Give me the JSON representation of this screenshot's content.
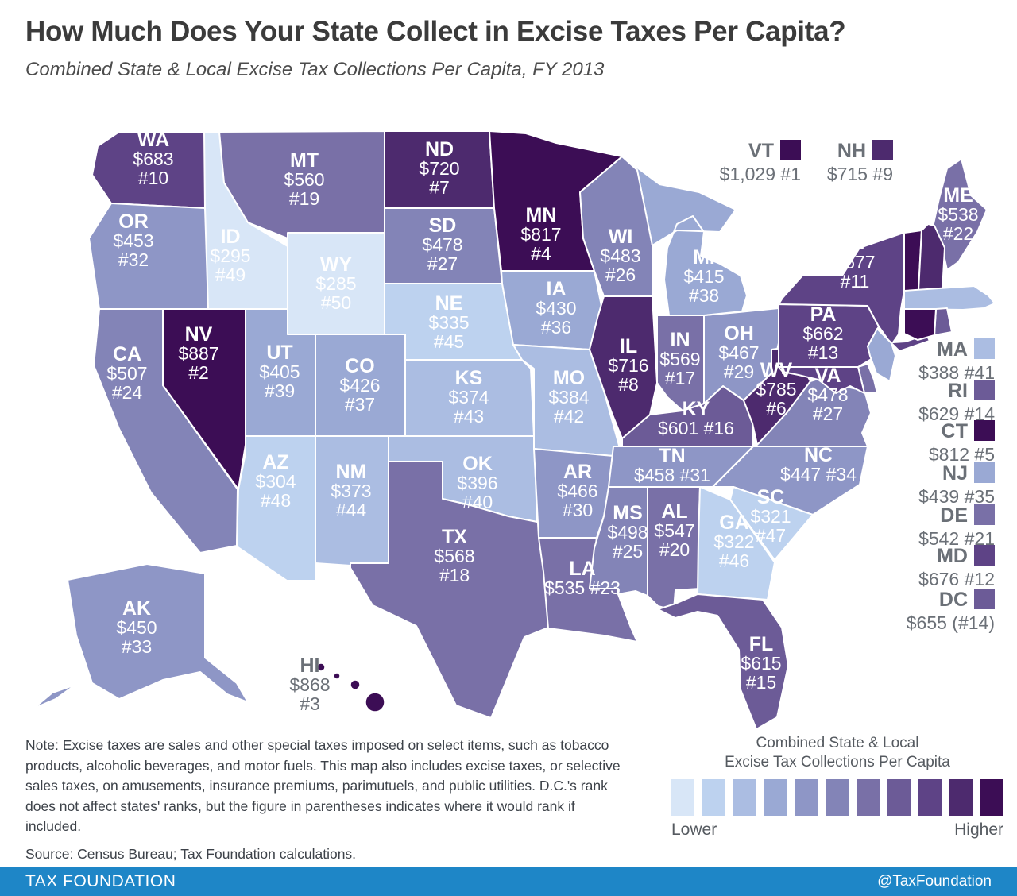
{
  "header": {
    "title": "How Much Does Your State Collect in Excise Taxes Per Capita?",
    "subtitle": "Combined State & Local Excise Tax Collections Per Capita, FY 2013"
  },
  "map": {
    "border_color": "#ffffff",
    "label_color_on_state": "#ffffff",
    "label_color_offset": "#6b7077",
    "ramp": [
      "#d8e6f7",
      "#bdd2ef",
      "#abbde2",
      "#9aa9d4",
      "#8e96c6",
      "#8384b7",
      "#7970a7",
      "#6c5b97",
      "#5e4386",
      "#4d2a6e",
      "#3c0d55"
    ],
    "callouts": [
      "VT",
      "NH"
    ],
    "side_list": [
      "MA",
      "RI",
      "CT",
      "NJ",
      "DE",
      "MD",
      "DC"
    ],
    "states": [
      {
        "abbr": "WA",
        "amount": "$683",
        "rank": "#10",
        "tier": 9
      },
      {
        "abbr": "OR",
        "amount": "$453",
        "rank": "#32",
        "tier": 5
      },
      {
        "abbr": "CA",
        "amount": "$507",
        "rank": "#24",
        "tier": 6
      },
      {
        "abbr": "NV",
        "amount": "$887",
        "rank": "#2",
        "tier": 11
      },
      {
        "abbr": "ID",
        "amount": "$295",
        "rank": "#49",
        "tier": 1
      },
      {
        "abbr": "UT",
        "amount": "$405",
        "rank": "#39",
        "tier": 4
      },
      {
        "abbr": "AZ",
        "amount": "$304",
        "rank": "#48",
        "tier": 2
      },
      {
        "abbr": "MT",
        "amount": "$560",
        "rank": "#19",
        "tier": 7
      },
      {
        "abbr": "WY",
        "amount": "$285",
        "rank": "#50",
        "tier": 1
      },
      {
        "abbr": "CO",
        "amount": "$426",
        "rank": "#37",
        "tier": 4
      },
      {
        "abbr": "NM",
        "amount": "$373",
        "rank": "#44",
        "tier": 3
      },
      {
        "abbr": "ND",
        "amount": "$720",
        "rank": "#7",
        "tier": 10
      },
      {
        "abbr": "SD",
        "amount": "$478",
        "rank": "#27",
        "tier": 6
      },
      {
        "abbr": "NE",
        "amount": "$335",
        "rank": "#45",
        "tier": 2
      },
      {
        "abbr": "KS",
        "amount": "$374",
        "rank": "#43",
        "tier": 3
      },
      {
        "abbr": "OK",
        "amount": "$396",
        "rank": "#40",
        "tier": 3
      },
      {
        "abbr": "TX",
        "amount": "$568",
        "rank": "#18",
        "tier": 7
      },
      {
        "abbr": "MN",
        "amount": "$817",
        "rank": "#4",
        "tier": 11
      },
      {
        "abbr": "IA",
        "amount": "$430",
        "rank": "#36",
        "tier": 4
      },
      {
        "abbr": "MO",
        "amount": "$384",
        "rank": "#42",
        "tier": 3
      },
      {
        "abbr": "AR",
        "amount": "$466",
        "rank": "#30",
        "tier": 5
      },
      {
        "abbr": "LA",
        "amount": "$535",
        "rank": "#23",
        "tier": 7
      },
      {
        "abbr": "WI",
        "amount": "$483",
        "rank": "#26",
        "tier": 6
      },
      {
        "abbr": "IL",
        "amount": "$716",
        "rank": "#8",
        "tier": 10
      },
      {
        "abbr": "MS",
        "amount": "$498",
        "rank": "#25",
        "tier": 6
      },
      {
        "abbr": "AL",
        "amount": "$547",
        "rank": "#20",
        "tier": 7
      },
      {
        "abbr": "TN",
        "amount": "$458",
        "rank": "#31",
        "tier": 5
      },
      {
        "abbr": "KY",
        "amount": "$601",
        "rank": "#16",
        "tier": 8
      },
      {
        "abbr": "IN",
        "amount": "$569",
        "rank": "#17",
        "tier": 7
      },
      {
        "abbr": "OH",
        "amount": "$467",
        "rank": "#29",
        "tier": 5
      },
      {
        "abbr": "MI",
        "amount": "$415",
        "rank": "#38",
        "tier": 4
      },
      {
        "abbr": "WV",
        "amount": "$785",
        "rank": "#6",
        "tier": 10
      },
      {
        "abbr": "VA",
        "amount": "$478",
        "rank": "#27",
        "tier": 6
      },
      {
        "abbr": "NC",
        "amount": "$447",
        "rank": "#34",
        "tier": 5
      },
      {
        "abbr": "SC",
        "amount": "$321",
        "rank": "#47",
        "tier": 2
      },
      {
        "abbr": "GA",
        "amount": "$322",
        "rank": "#46",
        "tier": 2
      },
      {
        "abbr": "FL",
        "amount": "$615",
        "rank": "#15",
        "tier": 8
      },
      {
        "abbr": "PA",
        "amount": "$662",
        "rank": "#13",
        "tier": 9
      },
      {
        "abbr": "NY",
        "amount": "$677",
        "rank": "#11",
        "tier": 9
      },
      {
        "abbr": "ME",
        "amount": "$538",
        "rank": "#22",
        "tier": 7
      },
      {
        "abbr": "VT",
        "amount": "$1,029",
        "rank": "#1",
        "tier": 11
      },
      {
        "abbr": "NH",
        "amount": "$715",
        "rank": "#9",
        "tier": 10
      },
      {
        "abbr": "MA",
        "amount": "$388",
        "rank": "#41",
        "tier": 3
      },
      {
        "abbr": "RI",
        "amount": "$629",
        "rank": "#14",
        "tier": 8
      },
      {
        "abbr": "CT",
        "amount": "$812",
        "rank": "#5",
        "tier": 11
      },
      {
        "abbr": "NJ",
        "amount": "$439",
        "rank": "#35",
        "tier": 4
      },
      {
        "abbr": "DE",
        "amount": "$542",
        "rank": "#21",
        "tier": 7
      },
      {
        "abbr": "MD",
        "amount": "$676",
        "rank": "#12",
        "tier": 9
      },
      {
        "abbr": "DC",
        "amount": "$655",
        "rank": "(#14)",
        "tier": 8
      },
      {
        "abbr": "AK",
        "amount": "$450",
        "rank": "#33",
        "tier": 5
      },
      {
        "abbr": "HI",
        "amount": "$868",
        "rank": "#3",
        "tier": 11
      }
    ]
  },
  "note": {
    "text": "Note: Excise taxes are sales and other special taxes imposed on select items, such as tobacco products, alcoholic beverages, and motor fuels. This map also includes excise taxes, or selective sales taxes, on amusements, insurance premiums, parimutuels, and public utilities. D.C.'s rank does not affect states' ranks, but the figure in parentheses indicates where it would rank if included.",
    "source": "Source: Census Bureau; Tax Foundation calculations."
  },
  "legend": {
    "title_line1": "Combined State & Local",
    "title_line2": "Excise Tax Collections Per Capita",
    "lower": "Lower",
    "higher": "Higher"
  },
  "footer": {
    "left": "TAX FOUNDATION",
    "right": "@TaxFoundation",
    "bg": "#1e86c7"
  }
}
